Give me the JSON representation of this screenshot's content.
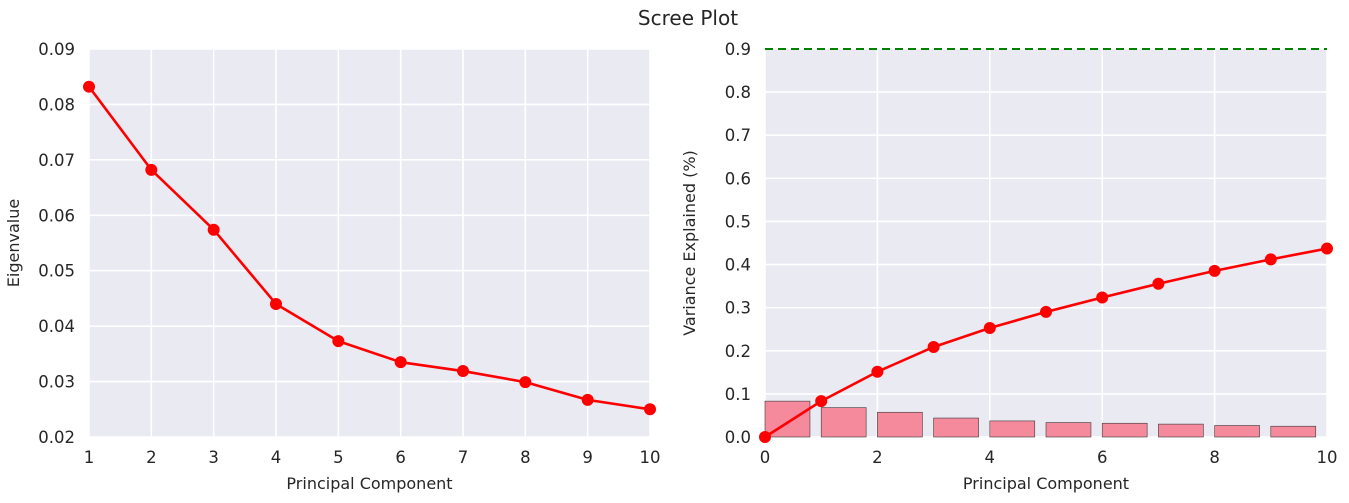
{
  "figure": {
    "title": "Scree Plot"
  },
  "chart_data": [
    {
      "type": "line",
      "title": "",
      "xlabel": "Principal Component",
      "ylabel": "Eigenvalue",
      "xlim": [
        1,
        10
      ],
      "ylim": [
        0.02,
        0.09
      ],
      "xticks": [
        "1",
        "2",
        "3",
        "4",
        "5",
        "6",
        "7",
        "8",
        "9",
        "10"
      ],
      "yticks": [
        "0.02",
        "0.03",
        "0.04",
        "0.05",
        "0.06",
        "0.07",
        "0.08",
        "0.09"
      ],
      "grid": true,
      "background": "#eaeaf2",
      "series": [
        {
          "x": [
            1,
            2,
            3,
            4,
            5,
            6,
            7,
            8,
            9,
            10
          ],
          "values": [
            0.0832,
            0.0682,
            0.0574,
            0.044,
            0.0373,
            0.0335,
            0.0319,
            0.0299,
            0.0267,
            0.025
          ],
          "color": "#ff0000",
          "marker": "circle"
        }
      ]
    },
    {
      "type": "bar+line",
      "title": "",
      "xlabel": "Principal Component",
      "ylabel": "Variance Explained (%)",
      "xlim": [
        0,
        10
      ],
      "ylim": [
        0.0,
        0.9
      ],
      "xticks": [
        "0",
        "2",
        "4",
        "6",
        "8",
        "10"
      ],
      "yticks": [
        "0.0",
        "0.1",
        "0.2",
        "0.3",
        "0.4",
        "0.5",
        "0.6",
        "0.7",
        "0.8",
        "0.9"
      ],
      "grid": true,
      "background": "#eaeaf2",
      "bars": {
        "x": [
          0,
          1,
          2,
          3,
          4,
          5,
          6,
          7,
          8,
          9
        ],
        "values": [
          0.0832,
          0.0682,
          0.0574,
          0.044,
          0.0373,
          0.0335,
          0.0319,
          0.0299,
          0.0267,
          0.025
        ],
        "color": "#f48a9c"
      },
      "series": [
        {
          "x": [
            0,
            1,
            2,
            3,
            4,
            5,
            6,
            7,
            8,
            9,
            10
          ],
          "values": [
            0.0,
            0.0832,
            0.1514,
            0.2088,
            0.2528,
            0.2901,
            0.3236,
            0.3555,
            0.3854,
            0.4121,
            0.4371
          ],
          "color": "#ff0000",
          "marker": "circle"
        }
      ],
      "reference_line": {
        "y": 0.9,
        "color": "#008000",
        "style": "dashed"
      }
    }
  ]
}
